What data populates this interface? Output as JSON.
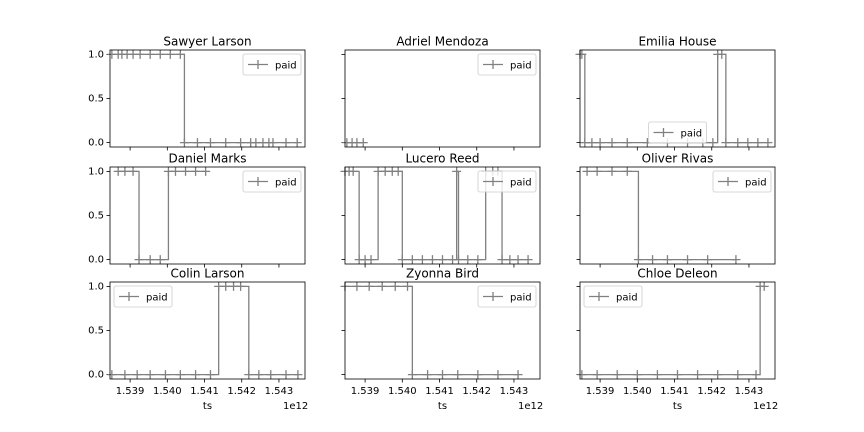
{
  "chart_data": [
    {
      "type": "line",
      "title": "Sawyer Larson",
      "legend": "upper right",
      "x": [
        1538510000000,
        1538680000000,
        1538780000000,
        1538920000000,
        1539080000000,
        1539270000000,
        1539540000000,
        1539810000000,
        1540080000000,
        1540350000000,
        1540460000000,
        1540810000000,
        1541160000000,
        1541570000000,
        1541970000000,
        1542240000000,
        1542380000000,
        1542570000000,
        1542730000000,
        1542840000000,
        1543190000000,
        1543490000000
      ],
      "series": [
        {
          "name": "paid",
          "color": "#808080",
          "values": [
            1,
            1,
            1,
            1,
            1,
            1,
            1,
            1,
            1,
            1,
            0,
            0,
            0,
            0,
            0,
            0,
            0,
            0,
            0,
            0,
            0,
            0
          ]
        }
      ],
      "xlim": [
        1538460000000,
        1543700000000
      ],
      "ylim": [
        -0.05,
        1.05
      ],
      "xticks": [
        1539000000000,
        1540000000000,
        1541000000000,
        1542000000000,
        1543000000000
      ],
      "yticks": [
        {
          "value": 0,
          "label": "0.0"
        },
        {
          "value": 0.5,
          "label": "0.5"
        },
        {
          "value": 1,
          "label": "1.0"
        }
      ]
    },
    {
      "type": "line",
      "title": "Adriel Mendoza",
      "legend": "upper right",
      "x": [
        1538510000000,
        1538650000000,
        1538780000000,
        1538950000000
      ],
      "series": [
        {
          "name": "paid",
          "color": "#808080",
          "values": [
            0,
            0,
            0,
            0
          ]
        }
      ],
      "xlim": [
        1538460000000,
        1543700000000
      ],
      "ylim": [
        -0.05,
        1.05
      ],
      "xticks": [
        1539000000000,
        1540000000000,
        1541000000000,
        1542000000000,
        1543000000000
      ],
      "yticks": [
        0,
        0.5,
        1
      ]
    },
    {
      "type": "line",
      "title": "Emilia House",
      "legend": "lower center",
      "x": [
        1538460000000,
        1538510000000,
        1538590000000,
        1538780000000,
        1539000000000,
        1539320000000,
        1539730000000,
        1540270000000,
        1540810000000,
        1541350000000,
        1541760000000,
        1542030000000,
        1542160000000,
        1542270000000,
        1542380000000,
        1542700000000,
        1542970000000,
        1543240000000,
        1543510000000
      ],
      "series": [
        {
          "name": "paid",
          "color": "#808080",
          "values": [
            1,
            1,
            0,
            0,
            0,
            0,
            0,
            0,
            0,
            0,
            0,
            0,
            1,
            1,
            0,
            0,
            0,
            0,
            0
          ]
        }
      ],
      "xlim": [
        1538460000000,
        1543700000000
      ],
      "ylim": [
        -0.05,
        1.05
      ],
      "xticks": [
        1539000000000,
        1540000000000,
        1541000000000,
        1542000000000,
        1543000000000
      ],
      "yticks": [
        0,
        0.5,
        1
      ]
    },
    {
      "type": "line",
      "title": "Daniel Marks",
      "legend": "upper right",
      "x": [
        1538680000000,
        1538860000000,
        1539080000000,
        1539240000000,
        1539540000000,
        1539810000000,
        1540030000000,
        1540220000000,
        1540490000000,
        1540760000000,
        1541030000000
      ],
      "series": [
        {
          "name": "paid",
          "color": "#808080",
          "values": [
            1,
            1,
            1,
            0,
            0,
            0,
            1,
            1,
            1,
            1,
            1
          ]
        }
      ],
      "xlim": [
        1538460000000,
        1543700000000
      ],
      "ylim": [
        -0.05,
        1.05
      ],
      "xticks": [
        1539000000000,
        1540000000000,
        1541000000000,
        1542000000000,
        1543000000000
      ],
      "yticks": [
        {
          "value": 0,
          "label": "0.0"
        },
        {
          "value": 0.5,
          "label": "0.5"
        },
        {
          "value": 1,
          "label": "1.0"
        }
      ]
    },
    {
      "type": "line",
      "title": "Lucero Reed",
      "legend": "upper right",
      "x": [
        1538460000000,
        1538570000000,
        1538680000000,
        1538840000000,
        1539000000000,
        1539160000000,
        1539350000000,
        1539540000000,
        1539730000000,
        1539890000000,
        1540000000000,
        1540270000000,
        1540540000000,
        1540810000000,
        1541080000000,
        1541350000000,
        1541460000000,
        1541510000000,
        1541760000000,
        1542030000000,
        1542240000000,
        1542430000000,
        1542570000000,
        1542680000000,
        1542890000000,
        1543110000000,
        1543380000000
      ],
      "series": [
        {
          "name": "paid",
          "color": "#808080",
          "values": [
            1,
            1,
            1,
            0,
            0,
            0,
            1,
            1,
            1,
            1,
            0,
            0,
            0,
            0,
            0,
            0,
            1,
            0,
            0,
            0,
            1,
            1,
            1,
            0,
            0,
            0,
            0
          ]
        }
      ],
      "xlim": [
        1538460000000,
        1543700000000
      ],
      "ylim": [
        -0.05,
        1.05
      ],
      "xticks": [
        1539000000000,
        1540000000000,
        1541000000000,
        1542000000000,
        1543000000000
      ],
      "yticks": [
        0,
        0.5,
        1
      ]
    },
    {
      "type": "line",
      "title": "Oliver Rivas",
      "legend": "upper right",
      "x": [
        1538650000000,
        1538920000000,
        1539320000000,
        1539730000000,
        1540030000000,
        1540410000000,
        1540810000000,
        1541350000000,
        1541890000000,
        1542650000000
      ],
      "series": [
        {
          "name": "paid",
          "color": "#808080",
          "values": [
            1,
            1,
            1,
            1,
            0,
            0,
            0,
            0,
            0,
            0
          ]
        }
      ],
      "xlim": [
        1538460000000,
        1543700000000
      ],
      "ylim": [
        -0.05,
        1.05
      ],
      "xticks": [
        1539000000000,
        1540000000000,
        1541000000000,
        1542000000000,
        1543000000000
      ],
      "yticks": [
        0,
        0.5,
        1
      ]
    },
    {
      "type": "line",
      "title": "Colin Larson",
      "legend": "upper left",
      "xlabel": "ts",
      "x_offset": "1e12",
      "x": [
        1538510000000,
        1538860000000,
        1539190000000,
        1539540000000,
        1539950000000,
        1540350000000,
        1540760000000,
        1541160000000,
        1541380000000,
        1541570000000,
        1541780000000,
        1541970000000,
        1542190000000,
        1542460000000,
        1542780000000,
        1543190000000,
        1543510000000
      ],
      "series": [
        {
          "name": "paid",
          "color": "#808080",
          "values": [
            0,
            0,
            0,
            0,
            0,
            0,
            0,
            0,
            1,
            1,
            1,
            1,
            0,
            0,
            0,
            0,
            0
          ]
        }
      ],
      "xlim": [
        1538460000000,
        1543700000000
      ],
      "ylim": [
        -0.05,
        1.05
      ],
      "xticks": [
        {
          "value": 1539000000000,
          "label": "1.539"
        },
        {
          "value": 1540000000000,
          "label": "1.540"
        },
        {
          "value": 1541000000000,
          "label": "1.541"
        },
        {
          "value": 1542000000000,
          "label": "1.542"
        },
        {
          "value": 1543000000000,
          "label": "1.543"
        }
      ],
      "yticks": [
        {
          "value": 0,
          "label": "0.0"
        },
        {
          "value": 0.5,
          "label": "0.5"
        },
        {
          "value": 1,
          "label": "1.0"
        }
      ]
    },
    {
      "type": "line",
      "title": "Zyonna Bird",
      "legend": "upper right",
      "xlabel": "ts",
      "x_offset": "1e12",
      "x": [
        1538460000000,
        1538780000000,
        1539110000000,
        1539460000000,
        1539810000000,
        1540140000000,
        1540270000000,
        1540680000000,
        1541080000000,
        1541490000000,
        1542030000000,
        1542570000000,
        1543110000000
      ],
      "series": [
        {
          "name": "paid",
          "color": "#808080",
          "values": [
            1,
            1,
            1,
            1,
            1,
            1,
            0,
            0,
            0,
            0,
            0,
            0,
            0
          ]
        }
      ],
      "xlim": [
        1538460000000,
        1543700000000
      ],
      "ylim": [
        -0.05,
        1.05
      ],
      "xticks": [
        {
          "value": 1539000000000,
          "label": "1.539"
        },
        {
          "value": 1540000000000,
          "label": "1.540"
        },
        {
          "value": 1541000000000,
          "label": "1.541"
        },
        {
          "value": 1542000000000,
          "label": "1.542"
        },
        {
          "value": 1543000000000,
          "label": "1.543"
        }
      ],
      "yticks": [
        0,
        0.5,
        1
      ]
    },
    {
      "type": "line",
      "title": "Chloe Deleon",
      "legend": "upper left",
      "xlabel": "ts",
      "x_offset": "1e12",
      "x": [
        1538510000000,
        1538920000000,
        1539460000000,
        1540000000000,
        1540540000000,
        1541080000000,
        1541620000000,
        1542160000000,
        1542700000000,
        1543190000000,
        1543300000000,
        1543410000000
      ],
      "series": [
        {
          "name": "paid",
          "color": "#808080",
          "values": [
            0,
            0,
            0,
            0,
            0,
            0,
            0,
            0,
            0,
            0,
            1,
            1
          ]
        }
      ],
      "xlim": [
        1538460000000,
        1543700000000
      ],
      "ylim": [
        -0.05,
        1.05
      ],
      "xticks": [
        {
          "value": 1539000000000,
          "label": "1.539"
        },
        {
          "value": 1540000000000,
          "label": "1.540"
        },
        {
          "value": 1541000000000,
          "label": "1.541"
        },
        {
          "value": 1542000000000,
          "label": "1.542"
        },
        {
          "value": 1543000000000,
          "label": "1.543"
        }
      ],
      "yticks": [
        0,
        0.5,
        1
      ]
    }
  ]
}
